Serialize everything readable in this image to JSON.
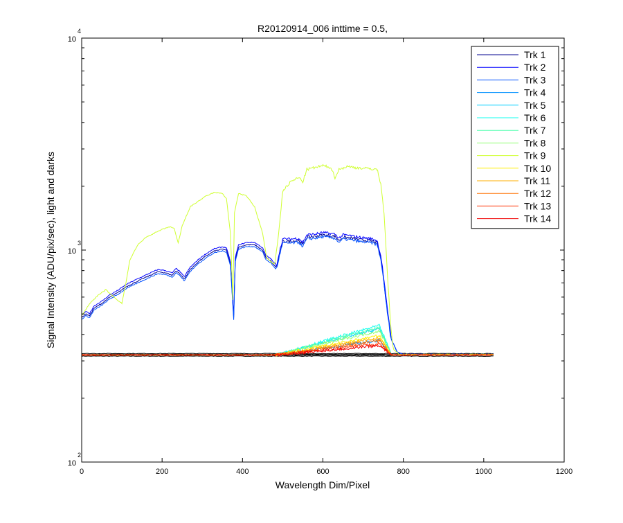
{
  "chart_data": {
    "type": "line",
    "title": "R20120914_006 inttime = 0.5,",
    "xlabel": "Wavelength Dim/Pixel",
    "ylabel": "Signal Intensity (ADU/pix/sec), light and darks",
    "xlim": [
      0,
      1200
    ],
    "ylim": [
      100,
      10000
    ],
    "yscale": "log",
    "x_ticks": [
      "0",
      "200",
      "400",
      "600",
      "800",
      "1000",
      "1200"
    ],
    "y_ticks": [
      {
        "value": 100,
        "base": "10",
        "exp": "2"
      },
      {
        "value": 1000,
        "base": "10",
        "exp": "3"
      },
      {
        "value": 10000,
        "base": "10",
        "exp": "4"
      }
    ],
    "legend_position": "top-right",
    "grid": false,
    "series": [
      {
        "name": "Trk 1",
        "color": "#00008f",
        "kind": "blue_bright",
        "offset": 0
      },
      {
        "name": "Trk 2",
        "color": "#0000ff",
        "kind": "blue_bright",
        "offset": 0.025
      },
      {
        "name": "Trk 3",
        "color": "#0050ff",
        "kind": "blue_bright",
        "offset": -0.02
      },
      {
        "name": "Trk 4",
        "color": "#0090ff",
        "kind": "ramp",
        "ramp_peak": 375
      },
      {
        "name": "Trk 5",
        "color": "#00cfff",
        "kind": "ramp",
        "ramp_peak": 425
      },
      {
        "name": "Trk 6",
        "color": "#10ffef",
        "kind": "ramp",
        "ramp_peak": 440
      },
      {
        "name": "Trk 7",
        "color": "#50ffaf",
        "kind": "ramp",
        "ramp_peak": 430
      },
      {
        "name": "Trk 8",
        "color": "#8fff70",
        "kind": "ramp",
        "ramp_peak": 415
      },
      {
        "name": "Trk 9",
        "color": "#cfff30",
        "kind": "green_bright"
      },
      {
        "name": "Trk 10",
        "color": "#ffef00",
        "kind": "ramp",
        "ramp_peak": 395
      },
      {
        "name": "Trk 11",
        "color": "#ffaf00",
        "kind": "ramp",
        "ramp_peak": 385
      },
      {
        "name": "Trk 12",
        "color": "#ff7000",
        "kind": "ramp",
        "ramp_peak": 375
      },
      {
        "name": "Trk 13",
        "color": "#ff3000",
        "kind": "ramp",
        "ramp_peak": 362
      },
      {
        "name": "Trk 14",
        "color": "#ef0000",
        "kind": "ramp",
        "ramp_peak": 355
      }
    ],
    "dark_level": 320,
    "blue_bright_profile": [
      [
        0,
        480
      ],
      [
        10,
        500
      ],
      [
        20,
        490
      ],
      [
        30,
        530
      ],
      [
        40,
        545
      ],
      [
        50,
        560
      ],
      [
        60,
        580
      ],
      [
        70,
        600
      ],
      [
        90,
        630
      ],
      [
        110,
        670
      ],
      [
        130,
        700
      ],
      [
        150,
        730
      ],
      [
        170,
        760
      ],
      [
        190,
        790
      ],
      [
        210,
        780
      ],
      [
        225,
        760
      ],
      [
        235,
        800
      ],
      [
        245,
        770
      ],
      [
        255,
        730
      ],
      [
        270,
        810
      ],
      [
        290,
        880
      ],
      [
        310,
        940
      ],
      [
        330,
        990
      ],
      [
        350,
        1010
      ],
      [
        360,
        1000
      ],
      [
        370,
        860
      ],
      [
        378,
        480
      ],
      [
        382,
        900
      ],
      [
        390,
        1030
      ],
      [
        410,
        1060
      ],
      [
        430,
        1060
      ],
      [
        450,
        1000
      ],
      [
        458,
        920
      ],
      [
        470,
        890
      ],
      [
        478,
        850
      ],
      [
        485,
        830
      ],
      [
        492,
        960
      ],
      [
        500,
        1100
      ],
      [
        520,
        1100
      ],
      [
        540,
        1110
      ],
      [
        550,
        1060
      ],
      [
        560,
        1150
      ],
      [
        580,
        1160
      ],
      [
        600,
        1180
      ],
      [
        630,
        1160
      ],
      [
        640,
        1110
      ],
      [
        650,
        1150
      ],
      [
        670,
        1140
      ],
      [
        690,
        1120
      ],
      [
        710,
        1110
      ],
      [
        725,
        1100
      ],
      [
        735,
        1080
      ],
      [
        745,
        900
      ],
      [
        752,
        700
      ],
      [
        760,
        520
      ],
      [
        770,
        380
      ],
      [
        785,
        330
      ],
      [
        800,
        322
      ],
      [
        1025,
        322
      ]
    ],
    "green_bright_profile": [
      [
        0,
        490
      ],
      [
        20,
        560
      ],
      [
        40,
        610
      ],
      [
        60,
        650
      ],
      [
        80,
        600
      ],
      [
        100,
        560
      ],
      [
        110,
        700
      ],
      [
        120,
        900
      ],
      [
        140,
        1060
      ],
      [
        160,
        1150
      ],
      [
        180,
        1200
      ],
      [
        200,
        1250
      ],
      [
        220,
        1290
      ],
      [
        230,
        1260
      ],
      [
        240,
        1080
      ],
      [
        250,
        1300
      ],
      [
        270,
        1600
      ],
      [
        290,
        1700
      ],
      [
        310,
        1800
      ],
      [
        330,
        1870
      ],
      [
        350,
        1850
      ],
      [
        360,
        1750
      ],
      [
        370,
        1200
      ],
      [
        376,
        580
      ],
      [
        380,
        1500
      ],
      [
        390,
        1850
      ],
      [
        410,
        1800
      ],
      [
        430,
        1600
      ],
      [
        450,
        1200
      ],
      [
        460,
        920
      ],
      [
        470,
        880
      ],
      [
        480,
        860
      ],
      [
        490,
        1200
      ],
      [
        500,
        1900
      ],
      [
        520,
        2100
      ],
      [
        540,
        2200
      ],
      [
        550,
        2100
      ],
      [
        560,
        2400
      ],
      [
        580,
        2450
      ],
      [
        600,
        2500
      ],
      [
        620,
        2450
      ],
      [
        630,
        2200
      ],
      [
        640,
        2400
      ],
      [
        660,
        2480
      ],
      [
        680,
        2450
      ],
      [
        700,
        2430
      ],
      [
        720,
        2420
      ],
      [
        735,
        2400
      ],
      [
        745,
        2000
      ],
      [
        752,
        1500
      ],
      [
        760,
        800
      ],
      [
        768,
        450
      ],
      [
        775,
        340
      ],
      [
        790,
        322
      ],
      [
        1025,
        322
      ]
    ]
  }
}
